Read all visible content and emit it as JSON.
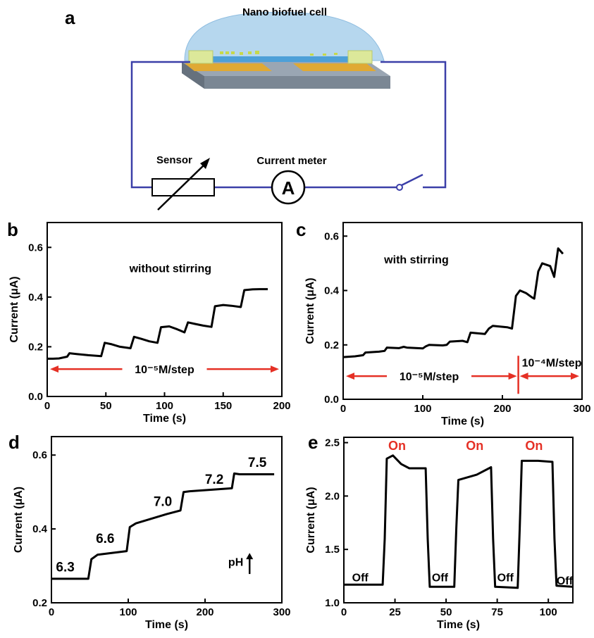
{
  "diagram": {
    "panel_label": "a",
    "title": "Nano biofuel cell",
    "sensor_label": "Sensor",
    "meter_label": "Current meter",
    "meter_symbol": "A",
    "wire_color": "#3b3fa8"
  },
  "chart_data": [
    {
      "panel": "b",
      "type": "line",
      "title": "",
      "xlabel": "Time (s)",
      "ylabel": "Current (μA)",
      "xlim": [
        0,
        200
      ],
      "ylim": [
        0.0,
        0.7
      ],
      "xticks": [
        "0",
        "50",
        "100",
        "150",
        "200"
      ],
      "yticks": [
        "0.0",
        "0.2",
        "0.4",
        "0.6"
      ],
      "annotation": "without stirring",
      "step_label": "10⁻⁵M/step",
      "series": [
        {
          "x": [
            0,
            5,
            10,
            17,
            19,
            25,
            35,
            46,
            49,
            55,
            62,
            71,
            74,
            80,
            87,
            94,
            97,
            104,
            111,
            117,
            120,
            126,
            133,
            140,
            143,
            150,
            157,
            165,
            168,
            175,
            181,
            188
          ],
          "y": [
            0.152,
            0.152,
            0.153,
            0.16,
            0.174,
            0.171,
            0.166,
            0.162,
            0.216,
            0.21,
            0.2,
            0.194,
            0.24,
            0.232,
            0.222,
            0.216,
            0.279,
            0.282,
            0.27,
            0.258,
            0.298,
            0.292,
            0.285,
            0.28,
            0.363,
            0.368,
            0.365,
            0.36,
            0.428,
            0.431,
            0.432,
            0.432
          ]
        }
      ]
    },
    {
      "panel": "c",
      "type": "line",
      "title": "",
      "xlabel": "Time (s)",
      "ylabel": "Current (μA)",
      "xlim": [
        0,
        300
      ],
      "ylim": [
        0.0,
        0.65
      ],
      "xticks": [
        "0",
        "100",
        "200",
        "300"
      ],
      "yticks": [
        "0.0",
        "0.2",
        "0.4",
        "0.6"
      ],
      "annotation": "with stirring",
      "step_label_1": "10⁻⁵M/step",
      "step_label_2": "10⁻⁴M/step",
      "divider_x": 220,
      "series": [
        {
          "x": [
            0,
            15,
            25,
            28,
            45,
            52,
            55,
            70,
            76,
            80,
            100,
            104,
            108,
            125,
            130,
            134,
            150,
            156,
            160,
            178,
            183,
            188,
            206,
            212,
            217,
            222,
            230,
            237,
            240,
            245,
            250,
            260,
            265,
            270,
            276
          ],
          "y": [
            0.155,
            0.158,
            0.162,
            0.172,
            0.175,
            0.178,
            0.19,
            0.188,
            0.193,
            0.19,
            0.187,
            0.195,
            0.2,
            0.198,
            0.2,
            0.212,
            0.215,
            0.21,
            0.245,
            0.24,
            0.26,
            0.27,
            0.265,
            0.26,
            0.38,
            0.4,
            0.39,
            0.375,
            0.37,
            0.47,
            0.5,
            0.49,
            0.45,
            0.555,
            0.535
          ]
        }
      ]
    },
    {
      "panel": "d",
      "type": "line",
      "title": "",
      "xlabel": "Time (s)",
      "ylabel": "Current (μA)",
      "xlim": [
        0,
        300
      ],
      "ylim": [
        0.2,
        0.65
      ],
      "xticks": [
        "0",
        "100",
        "200",
        "300"
      ],
      "yticks": [
        "0.2",
        "0.4",
        "0.6"
      ],
      "ph_label": "pH",
      "ph_values": [
        {
          "label": "6.3",
          "x": 18,
          "y": 0.285
        },
        {
          "label": "6.6",
          "x": 70,
          "y": 0.362
        },
        {
          "label": "7.0",
          "x": 145,
          "y": 0.462
        },
        {
          "label": "7.2",
          "x": 212,
          "y": 0.522
        },
        {
          "label": "7.5",
          "x": 268,
          "y": 0.568
        }
      ],
      "series": [
        {
          "x": [
            0,
            48,
            52,
            60,
            98,
            102,
            110,
            150,
            168,
            172,
            180,
            235,
            238,
            245,
            290
          ],
          "y": [
            0.265,
            0.265,
            0.318,
            0.33,
            0.34,
            0.405,
            0.415,
            0.44,
            0.45,
            0.5,
            0.502,
            0.51,
            0.55,
            0.548,
            0.548
          ]
        }
      ]
    },
    {
      "panel": "e",
      "type": "line",
      "title": "",
      "xlabel": "Time (s)",
      "ylabel": "Current (μA)",
      "xlim": [
        0,
        112
      ],
      "ylim": [
        1.0,
        2.55
      ],
      "xticks": [
        "0",
        "25",
        "50",
        "75",
        "100"
      ],
      "yticks": [
        "1.0",
        "1.5",
        "2.0",
        "2.5"
      ],
      "on_label": "On",
      "off_label": "Off",
      "on_positions": [
        {
          "x": 26,
          "y": 2.43
        },
        {
          "x": 64,
          "y": 2.43
        },
        {
          "x": 93,
          "y": 2.43
        }
      ],
      "off_positions": [
        {
          "x": 8,
          "y": 1.2
        },
        {
          "x": 47,
          "y": 1.2
        },
        {
          "x": 79,
          "y": 1.2
        },
        {
          "x": 108,
          "y": 1.17
        }
      ],
      "series": [
        {
          "x": [
            0,
            19,
            20,
            21,
            24,
            28,
            32,
            40,
            41,
            42,
            54,
            55,
            56,
            65,
            72,
            73,
            74,
            85,
            86,
            87,
            95,
            102,
            103,
            104,
            112
          ],
          "y": [
            1.17,
            1.17,
            1.6,
            2.35,
            2.38,
            2.3,
            2.26,
            2.26,
            1.6,
            1.15,
            1.15,
            1.7,
            2.15,
            2.2,
            2.27,
            1.6,
            1.15,
            1.14,
            1.7,
            2.33,
            2.33,
            2.32,
            1.6,
            1.16,
            1.15
          ]
        }
      ]
    }
  ]
}
